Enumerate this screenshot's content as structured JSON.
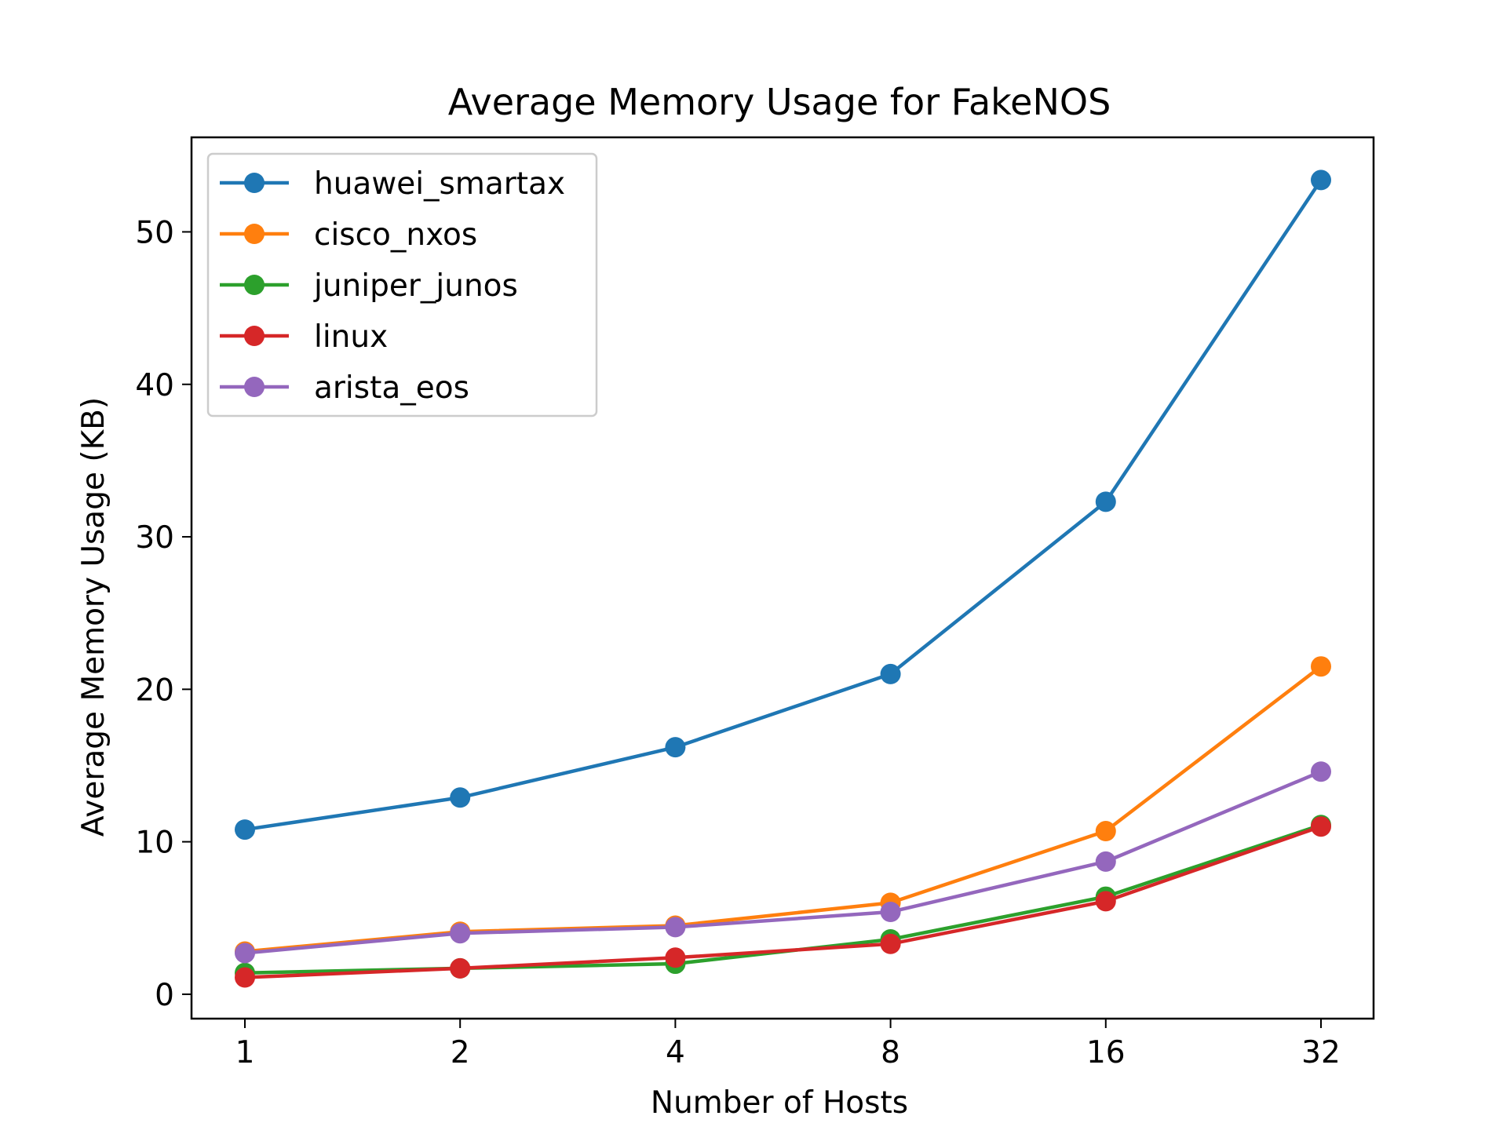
{
  "chart_data": {
    "type": "line",
    "title": "Average Memory Usage for FakeNOS",
    "xlabel": "Number of Hosts",
    "ylabel": "Average Memory Usage (KB)",
    "x_scale": "log2",
    "x": [
      1,
      2,
      4,
      8,
      16,
      32
    ],
    "x_tick_labels": [
      "1",
      "2",
      "4",
      "8",
      "16",
      "32"
    ],
    "y_ticks": [
      0,
      10,
      20,
      30,
      40,
      50
    ],
    "y_tick_labels": [
      "0",
      "10",
      "20",
      "30",
      "40",
      "50"
    ],
    "ylim": [
      -1.6,
      56.2
    ],
    "grid": false,
    "legend_position": "upper-left",
    "series": [
      {
        "name": "huawei_smartax",
        "color": "#1f77b4",
        "values": [
          10.8,
          12.9,
          16.2,
          21.0,
          32.3,
          53.4
        ]
      },
      {
        "name": "cisco_nxos",
        "color": "#ff7f0e",
        "values": [
          2.8,
          4.1,
          4.5,
          6.0,
          10.7,
          21.5
        ]
      },
      {
        "name": "juniper_junos",
        "color": "#2ca02c",
        "values": [
          1.4,
          1.7,
          2.0,
          3.6,
          6.4,
          11.1
        ]
      },
      {
        "name": "linux",
        "color": "#d62728",
        "values": [
          1.1,
          1.7,
          2.4,
          3.3,
          6.1,
          11.0
        ]
      },
      {
        "name": "arista_eos",
        "color": "#9467bd",
        "values": [
          2.7,
          4.0,
          4.4,
          5.4,
          8.7,
          14.6
        ]
      }
    ]
  }
}
